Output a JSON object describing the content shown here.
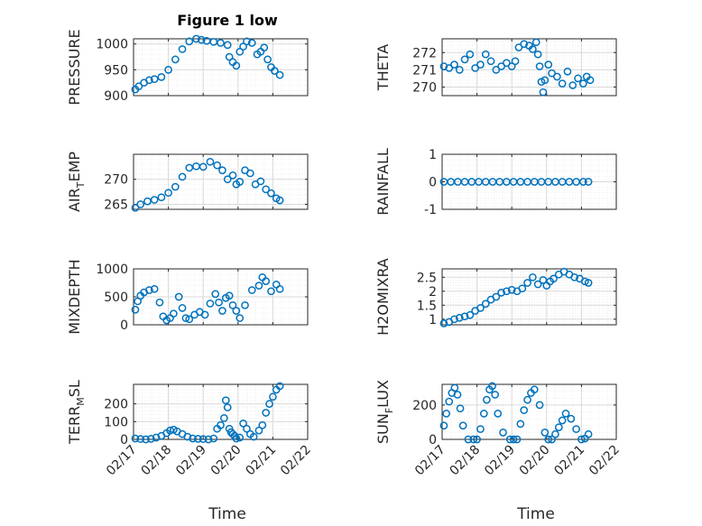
{
  "figure_title": "Figure 1 low",
  "colors": {
    "marker": "#0072BD",
    "axis": "#262626",
    "grid": "#d9d9d9",
    "minor_grid": "#ececec"
  },
  "chart_data": [
    {
      "type": "scatter",
      "key": "pressure",
      "ylabel": "PRESSURE",
      "ylim": [
        900,
        1010
      ],
      "yticks": [
        900,
        950,
        1000
      ],
      "xlim": [
        "02/17",
        "02/22"
      ],
      "x": [
        0.05,
        0.15,
        0.3,
        0.45,
        0.6,
        0.8,
        1.0,
        1.2,
        1.4,
        1.6,
        1.8,
        1.95,
        2.1,
        2.3,
        2.5,
        2.7,
        2.75,
        2.85,
        2.95,
        3.05,
        3.15,
        3.25,
        3.4,
        3.55,
        3.65,
        3.75,
        3.85,
        3.95,
        4.05,
        4.2
      ],
      "y": [
        912,
        918,
        925,
        930,
        932,
        936,
        950,
        970,
        990,
        1005,
        1010,
        1008,
        1006,
        1004,
        1002,
        998,
        975,
        965,
        958,
        985,
        995,
        1005,
        1002,
        980,
        985,
        993,
        970,
        955,
        948,
        940
      ]
    },
    {
      "type": "scatter",
      "key": "theta",
      "ylabel": "THETA",
      "ylim": [
        269.5,
        272.8
      ],
      "yticks": [
        270,
        271,
        272
      ],
      "xlim": [
        "02/17",
        "02/22"
      ],
      "x": [
        0.05,
        0.2,
        0.35,
        0.5,
        0.65,
        0.8,
        0.95,
        1.1,
        1.25,
        1.4,
        1.55,
        1.7,
        1.85,
        2.0,
        2.1,
        2.2,
        2.35,
        2.5,
        2.6,
        2.7,
        2.75,
        2.8,
        2.85,
        2.9,
        2.95,
        3.05,
        3.15,
        3.3,
        3.45,
        3.6,
        3.75,
        3.9,
        4.05,
        4.15,
        4.25
      ],
      "y": [
        271.2,
        271.1,
        271.3,
        271.0,
        271.6,
        271.9,
        271.1,
        271.3,
        271.9,
        271.5,
        271.0,
        271.2,
        271.4,
        271.2,
        271.5,
        272.3,
        272.5,
        272.4,
        272.2,
        272.6,
        271.9,
        271.2,
        270.3,
        269.7,
        270.4,
        271.3,
        270.8,
        270.6,
        270.2,
        270.9,
        270.1,
        270.5,
        270.2,
        270.6,
        270.4
      ]
    },
    {
      "type": "scatter",
      "key": "air_temp",
      "ylabel": "AIR",
      "ylabel_sub": "T",
      "ylabel_rest": "EMP",
      "ylim": [
        264,
        275
      ],
      "yticks": [
        265,
        270
      ],
      "xlim": [
        "02/17",
        "02/22"
      ],
      "x": [
        0.05,
        0.2,
        0.4,
        0.6,
        0.8,
        1.0,
        1.2,
        1.4,
        1.6,
        1.8,
        2.0,
        2.2,
        2.4,
        2.55,
        2.7,
        2.85,
        2.95,
        3.05,
        3.2,
        3.35,
        3.5,
        3.65,
        3.8,
        3.95,
        4.1,
        4.2
      ],
      "y": [
        264.3,
        265.0,
        265.6,
        265.9,
        266.4,
        267.3,
        268.5,
        270.5,
        272.3,
        272.6,
        272.5,
        273.5,
        272.8,
        271.8,
        270.0,
        270.8,
        269.0,
        269.5,
        271.8,
        271.2,
        269.0,
        269.6,
        268.0,
        267.2,
        266.2,
        265.8
      ]
    },
    {
      "type": "scatter",
      "key": "rainfall",
      "ylabel": "RAINFALL",
      "ylim": [
        -1,
        1
      ],
      "yticks": [
        -1,
        0,
        1
      ],
      "xlim": [
        "02/17",
        "02/22"
      ],
      "x": [
        0.05,
        0.25,
        0.45,
        0.65,
        0.85,
        1.05,
        1.25,
        1.45,
        1.65,
        1.85,
        2.05,
        2.25,
        2.45,
        2.65,
        2.85,
        3.05,
        3.25,
        3.45,
        3.65,
        3.85,
        4.05,
        4.2
      ],
      "y": [
        0,
        0,
        0,
        0,
        0,
        0,
        0,
        0,
        0,
        0,
        0,
        0,
        0,
        0,
        0,
        0,
        0,
        0,
        0,
        0,
        0,
        0
      ]
    },
    {
      "type": "scatter",
      "key": "mixdepth",
      "ylabel": "MIXDEPTH",
      "ylim": [
        0,
        1000
      ],
      "yticks": [
        0,
        500,
        1000
      ],
      "xlim": [
        "02/17",
        "02/22"
      ],
      "x": [
        0.05,
        0.12,
        0.2,
        0.3,
        0.45,
        0.6,
        0.75,
        0.85,
        0.95,
        1.05,
        1.15,
        1.3,
        1.4,
        1.5,
        1.6,
        1.75,
        1.9,
        2.05,
        2.2,
        2.35,
        2.45,
        2.55,
        2.65,
        2.75,
        2.85,
        2.95,
        3.05,
        3.2,
        3.4,
        3.6,
        3.7,
        3.8,
        3.95,
        4.1,
        4.2
      ],
      "y": [
        270,
        420,
        520,
        580,
        620,
        640,
        400,
        150,
        80,
        120,
        200,
        500,
        300,
        120,
        100,
        180,
        230,
        180,
        380,
        550,
        400,
        250,
        480,
        520,
        350,
        250,
        120,
        350,
        620,
        700,
        850,
        780,
        600,
        720,
        640
      ]
    },
    {
      "type": "scatter",
      "key": "h2omixra",
      "ylabel": "H2OMIXRA",
      "ylim": [
        0.8,
        2.8
      ],
      "yticks": [
        1,
        1.5,
        2,
        2.5
      ],
      "xlim": [
        "02/17",
        "02/22"
      ],
      "x": [
        0.05,
        0.2,
        0.35,
        0.5,
        0.65,
        0.8,
        0.95,
        1.1,
        1.25,
        1.4,
        1.55,
        1.7,
        1.85,
        2.0,
        2.15,
        2.3,
        2.45,
        2.6,
        2.75,
        2.9,
        3.0,
        3.1,
        3.2,
        3.35,
        3.5,
        3.65,
        3.8,
        3.95,
        4.1,
        4.2
      ],
      "y": [
        0.85,
        0.9,
        1.0,
        1.05,
        1.1,
        1.15,
        1.3,
        1.4,
        1.55,
        1.7,
        1.8,
        1.95,
        2.0,
        2.05,
        2.0,
        2.1,
        2.3,
        2.5,
        2.25,
        2.4,
        2.2,
        2.35,
        2.45,
        2.6,
        2.7,
        2.6,
        2.5,
        2.45,
        2.35,
        2.3
      ]
    },
    {
      "type": "scatter",
      "key": "terr_msl",
      "ylabel": "TERR",
      "ylabel_sub": "M",
      "ylabel_rest": "SL",
      "ylim": [
        0,
        310
      ],
      "yticks": [
        0,
        100,
        200
      ],
      "xlim": [
        "02/17",
        "02/22"
      ],
      "x": [
        0.05,
        0.2,
        0.35,
        0.5,
        0.65,
        0.8,
        0.95,
        1.05,
        1.15,
        1.25,
        1.4,
        1.55,
        1.7,
        1.85,
        2.0,
        2.15,
        2.3,
        2.4,
        2.5,
        2.6,
        2.65,
        2.7,
        2.75,
        2.8,
        2.85,
        2.9,
        2.95,
        3.05,
        3.15,
        3.25,
        3.35,
        3.45,
        3.6,
        3.7,
        3.8,
        3.9,
        4.0,
        4.1,
        4.2
      ],
      "y": [
        5,
        2,
        0,
        3,
        10,
        20,
        35,
        50,
        55,
        45,
        30,
        15,
        5,
        3,
        2,
        0,
        5,
        60,
        80,
        120,
        220,
        180,
        60,
        40,
        30,
        20,
        5,
        10,
        90,
        60,
        30,
        15,
        50,
        80,
        150,
        200,
        240,
        280,
        300
      ]
    },
    {
      "type": "scatter",
      "key": "sun_flux",
      "ylabel": "SUN",
      "ylabel_sub": "F",
      "ylabel_rest": "LUX",
      "ylim": [
        0,
        320
      ],
      "yticks": [
        0,
        200
      ],
      "xlim": [
        "02/17",
        "02/22"
      ],
      "x": [
        0.05,
        0.12,
        0.2,
        0.28,
        0.36,
        0.44,
        0.52,
        0.6,
        0.75,
        0.9,
        1.0,
        1.1,
        1.2,
        1.28,
        1.36,
        1.44,
        1.52,
        1.6,
        1.75,
        1.95,
        2.05,
        2.15,
        2.25,
        2.35,
        2.45,
        2.55,
        2.65,
        2.8,
        2.95,
        3.05,
        3.15,
        3.25,
        3.35,
        3.45,
        3.55,
        3.7,
        3.85,
        4.0,
        4.1,
        4.2
      ],
      "y": [
        80,
        150,
        220,
        270,
        300,
        260,
        180,
        80,
        0,
        0,
        0,
        60,
        150,
        230,
        290,
        310,
        260,
        150,
        40,
        0,
        0,
        0,
        90,
        170,
        230,
        270,
        290,
        200,
        40,
        0,
        0,
        30,
        70,
        110,
        150,
        120,
        60,
        0,
        5,
        30
      ]
    }
  ],
  "x_tick_labels": [
    "02/17",
    "02/18",
    "02/19",
    "02/20",
    "02/21",
    "02/22"
  ],
  "xlabel": "Time"
}
